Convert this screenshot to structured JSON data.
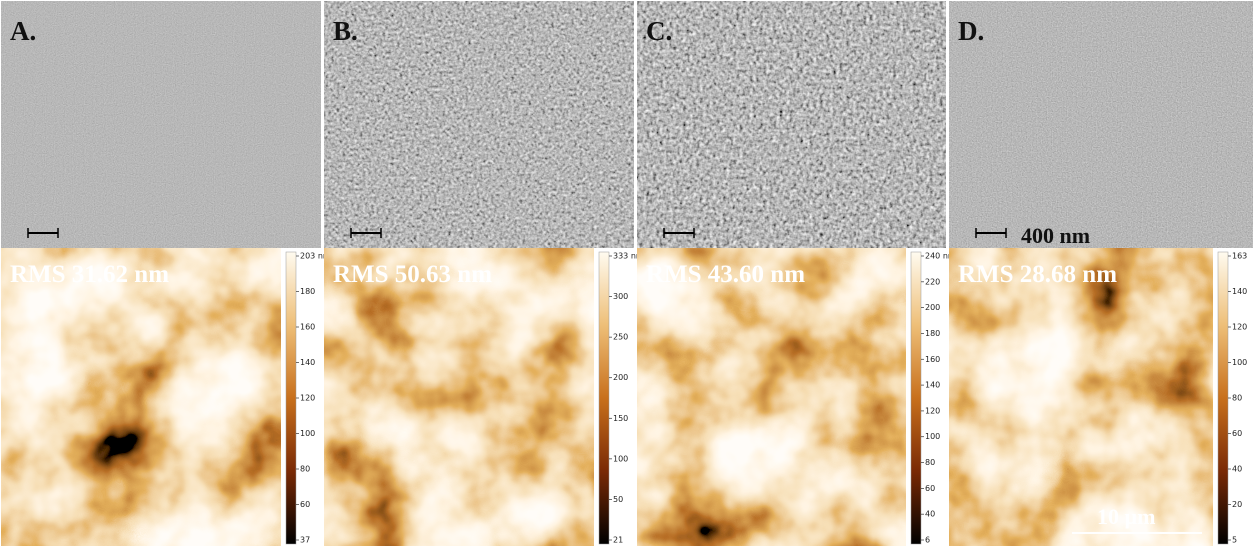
{
  "panels": [
    {
      "label": "A.",
      "rms": "RMS 31.62 nm",
      "colorbar": [
        "203 nm",
        "180",
        "160",
        "140",
        "120",
        "100",
        "80",
        "60",
        "37"
      ]
    },
    {
      "label": "B.",
      "rms": "RMS 50.63 nm",
      "colorbar": [
        "333 nm",
        "300",
        "250",
        "200",
        "150",
        "100",
        "50",
        "21"
      ]
    },
    {
      "label": "C.",
      "rms": "RMS 43.60 nm",
      "colorbar": [
        "240 nm",
        "220",
        "200",
        "180",
        "160",
        "140",
        "120",
        "100",
        "80",
        "60",
        "40",
        "6"
      ]
    },
    {
      "label": "D.",
      "rms": "RMS 28.68 nm",
      "colorbar": [
        "163",
        "140",
        "120",
        "100",
        "80",
        "60",
        "40",
        "20",
        "5"
      ]
    }
  ],
  "scale_bars": {
    "sem": "400 nm",
    "afm": "10 µm"
  }
}
